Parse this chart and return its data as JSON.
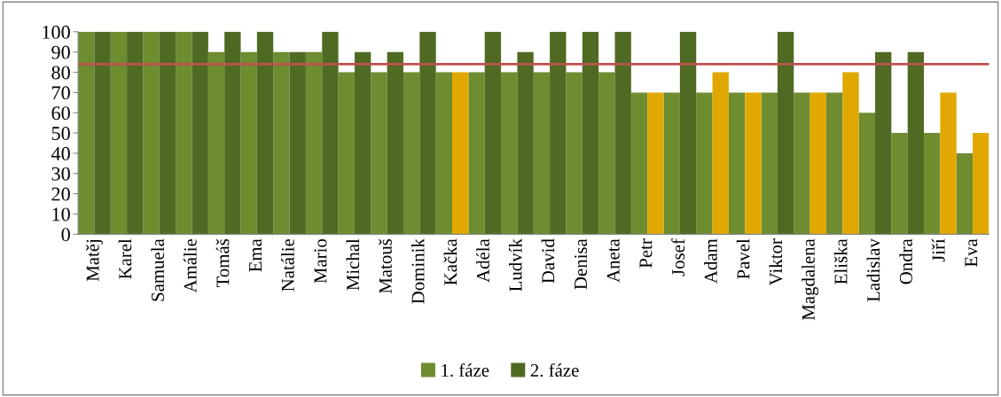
{
  "chart_data": {
    "type": "bar",
    "categories": [
      "Matěj",
      "Karel",
      "Samuela",
      "Amálie",
      "Tomáš",
      "Ema",
      "Natálie",
      "Mario",
      "Michal",
      "Matouš",
      "Dominik",
      "Kačka",
      "Adéla",
      "Ludvík",
      "David",
      "Denisa",
      "Aneta",
      "Petr",
      "Josef",
      "Adam",
      "Pavel",
      "Viktor",
      "Magdalena",
      "Eliška",
      "Ladislav",
      "Ondra",
      "Jiří",
      "Eva"
    ],
    "series": [
      {
        "name": "1. fáze",
        "color": "#6e8c30",
        "values": [
          100,
          100,
          100,
          100,
          90,
          90,
          90,
          90,
          80,
          80,
          80,
          80,
          80,
          80,
          80,
          80,
          80,
          70,
          70,
          70,
          70,
          70,
          70,
          70,
          60,
          50,
          50,
          40
        ]
      },
      {
        "name": "2. fáze",
        "color": "#4f6a22",
        "colors": [
          "#4f6a22",
          "#4f6a22",
          "#4f6a22",
          "#4f6a22",
          "#4f6a22",
          "#4f6a22",
          "#4f6a22",
          "#4f6a22",
          "#4f6a22",
          "#4f6a22",
          "#4f6a22",
          "#e0a800",
          "#4f6a22",
          "#4f6a22",
          "#4f6a22",
          "#4f6a22",
          "#4f6a22",
          "#e0a800",
          "#4f6a22",
          "#e0a800",
          "#e0a800",
          "#4f6a22",
          "#e0a800",
          "#e0a800",
          "#4f6a22",
          "#4f6a22",
          "#e0a800",
          "#e0a800"
        ],
        "values": [
          100,
          100,
          100,
          100,
          100,
          100,
          90,
          100,
          90,
          90,
          100,
          80,
          100,
          90,
          100,
          100,
          100,
          70,
          100,
          80,
          70,
          100,
          70,
          80,
          90,
          90,
          70,
          50
        ]
      }
    ],
    "ylim": [
      0,
      100
    ],
    "yticks": [
      0,
      10,
      20,
      30,
      40,
      50,
      60,
      70,
      80,
      90,
      100
    ],
    "ref_lines": [
      {
        "axis": "y",
        "value": 84,
        "color": "#c0504d"
      }
    ],
    "grid": false,
    "legend": "bottom"
  }
}
